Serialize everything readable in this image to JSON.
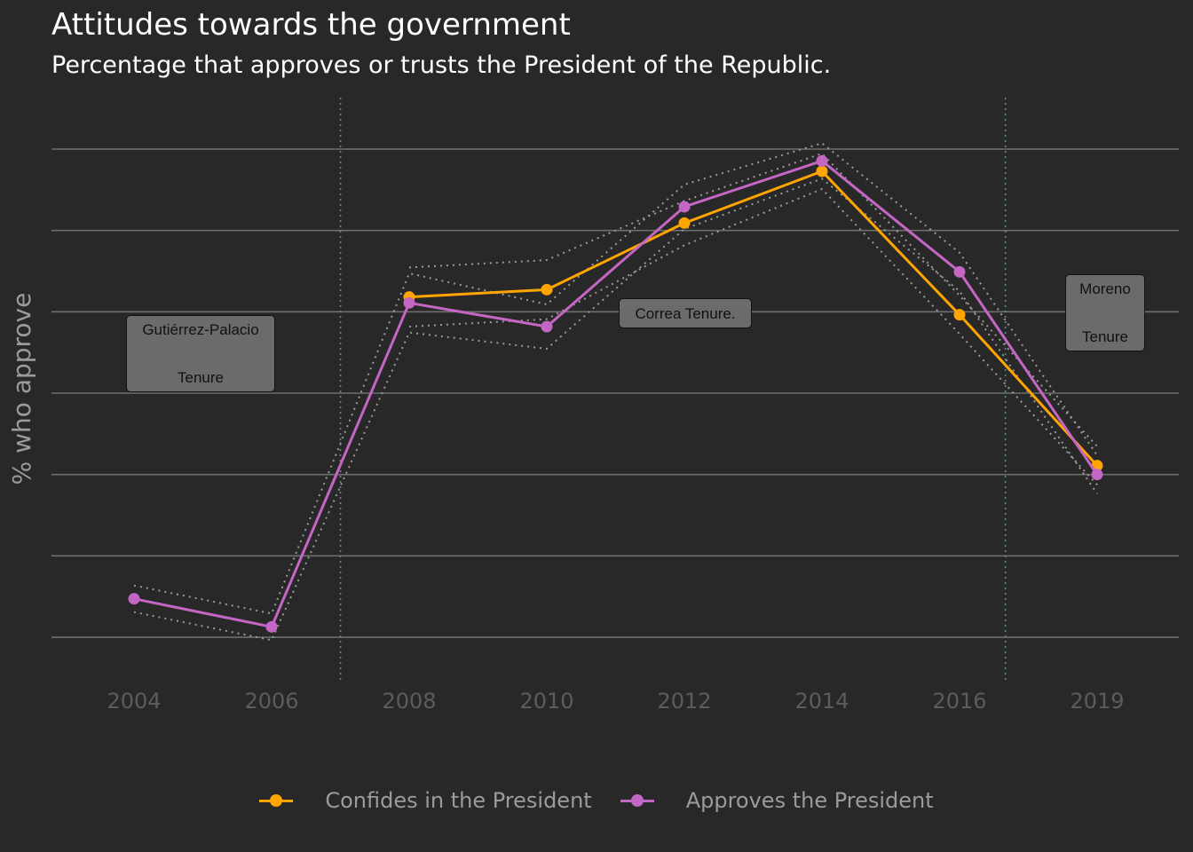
{
  "header": {
    "title": "Attitudes towards the government",
    "subtitle": "Percentage that approves or trusts the President of the Republic."
  },
  "colors": {
    "background": "#282828",
    "grid": "#6e6e6e",
    "confides": "#ffa500",
    "approves": "#c466c4",
    "ci": "#9a9a9a",
    "tenure_line": "#5f8a98",
    "annotation_bg": "#6b6b6b"
  },
  "chart_data": {
    "type": "line",
    "title": "Attitudes towards the government",
    "subtitle": "Percentage that approves or trusts the President of the Republic.",
    "xlabel": "",
    "ylabel": "% who approve",
    "x_ticks": [
      "2004",
      "2006",
      "2008",
      "2010",
      "2012",
      "2014",
      "2016",
      "2019"
    ],
    "y_ticks_shown": false,
    "ylim": [
      36,
      72
    ],
    "grid": true,
    "legend_position": "bottom",
    "series": [
      {
        "name": "Confides in the President",
        "color": "#ffa500",
        "x": [
          "2008",
          "2010",
          "2012",
          "2014",
          "2016",
          "2019"
        ],
        "values": [
          61,
          61.5,
          66,
          69.5,
          59.8,
          49.6
        ],
        "ci_low": [
          59,
          59.5,
          64.5,
          68.3,
          58.5,
          48.3
        ],
        "ci_high": [
          63,
          63.5,
          67.5,
          70.7,
          61.1,
          50.9
        ]
      },
      {
        "name": "Approves the President",
        "color": "#c466c4",
        "x": [
          "2004",
          "2006",
          "2008",
          "2010",
          "2012",
          "2014",
          "2016",
          "2019"
        ],
        "values": [
          40.6,
          38.7,
          60.6,
          59,
          67.1,
          70.2,
          62.7,
          49
        ],
        "ci_low": [
          39.7,
          37.8,
          58.6,
          57.5,
          65.6,
          69,
          61.4,
          47.7
        ],
        "ci_high": [
          41.5,
          39.6,
          62.6,
          60.5,
          68.6,
          71.4,
          64,
          50.3
        ]
      }
    ],
    "tenure_lines": [
      "2007",
      "2017"
    ],
    "annotations": [
      {
        "id": "gutierrez",
        "line1": "Gutiérrez-Palacio",
        "line2": "Tenure"
      },
      {
        "id": "correa",
        "line1": "Correa Tenure.",
        "line2": ""
      },
      {
        "id": "moreno",
        "line1": "Moreno",
        "line2": "Tenure"
      }
    ]
  }
}
